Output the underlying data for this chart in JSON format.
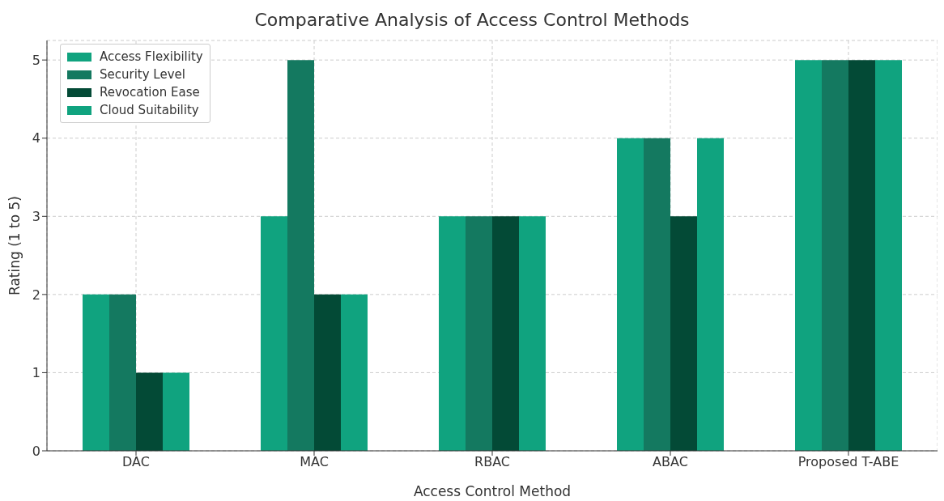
{
  "chart_data": {
    "type": "bar",
    "title": "Comparative Analysis of Access Control Methods",
    "xlabel": "Access Control Method",
    "ylabel": "Rating (1 to 5)",
    "categories": [
      "DAC",
      "MAC",
      "RBAC",
      "ABAC",
      "Proposed T-ABE"
    ],
    "series": [
      {
        "name": "Access Flexibility",
        "color": "#10a37f",
        "values": [
          2,
          3,
          3,
          4,
          5
        ]
      },
      {
        "name": "Security Level",
        "color": "#147960",
        "values": [
          2,
          5,
          3,
          4,
          5
        ]
      },
      {
        "name": "Revocation Ease",
        "color": "#034a36",
        "values": [
          1,
          2,
          3,
          3,
          5
        ]
      },
      {
        "name": "Cloud Suitability",
        "color": "#10a37f",
        "values": [
          1,
          2,
          3,
          4,
          5
        ]
      }
    ],
    "ylim": [
      0,
      5.25
    ],
    "yticks": [
      0,
      1,
      2,
      3,
      4,
      5
    ],
    "grid": true,
    "legend": "top left"
  }
}
